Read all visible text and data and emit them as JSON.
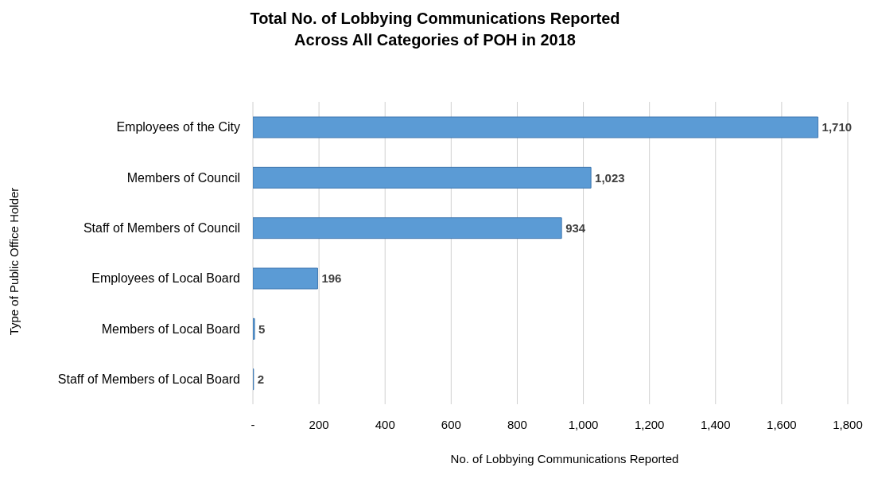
{
  "chart_data": {
    "type": "bar",
    "orientation": "horizontal",
    "title": "Total No. of Lobbying Communications Reported\nAcross All Categories of POH in 2018",
    "xlabel": "No. of Lobbying Communications Reported",
    "ylabel": "Type of Public Office Holder",
    "categories": [
      "Employees of the City",
      "Members of Council",
      "Staff of Members of Council",
      "Employees of Local Board",
      "Members of Local Board",
      "Staff of Members of Local Board"
    ],
    "values": [
      1710,
      1023,
      934,
      196,
      5,
      2
    ],
    "value_labels": [
      "1,710",
      "1,023",
      "934",
      "196",
      "5",
      "2"
    ],
    "color": "#5b9bd5",
    "xlim": [
      0,
      1800
    ],
    "xticks": [
      {
        "value": 0,
        "label": "-"
      },
      200,
      400,
      600,
      800,
      {
        "value": 1000,
        "label": "1,000"
      },
      {
        "value": 1200,
        "label": "1,200"
      },
      {
        "value": 1400,
        "label": "1,400"
      },
      {
        "value": 1600,
        "label": "1,600"
      },
      {
        "value": 1800,
        "label": "1,800"
      }
    ],
    "grid": "x",
    "legend": false
  }
}
